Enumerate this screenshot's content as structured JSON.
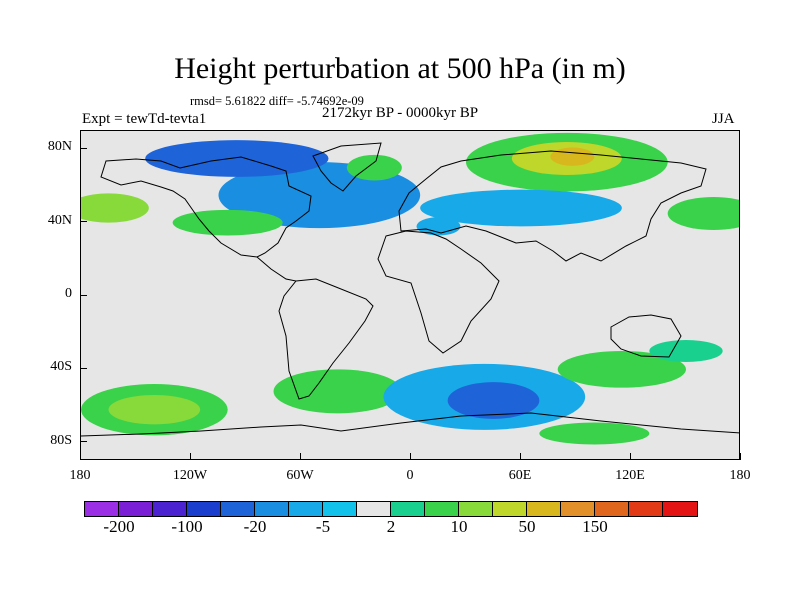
{
  "title": "Height perturbation at 500 hPa (in m)",
  "stats": "rmsd= 5.61822 diff= -5.74692e-09",
  "left_label": "Expt = tewTd-tevta1",
  "center_label": "2172kyr BP - 0000kyr BP",
  "right_label": "JJA",
  "map": {
    "lon_range": [
      -180,
      180
    ],
    "lat_range": [
      -90,
      90
    ],
    "x_ticks": [
      {
        "lon": -180,
        "label": "180"
      },
      {
        "lon": -120,
        "label": "120W"
      },
      {
        "lon": -60,
        "label": "60W"
      },
      {
        "lon": 0,
        "label": "0"
      },
      {
        "lon": 60,
        "label": "60E"
      },
      {
        "lon": 120,
        "label": "120E"
      },
      {
        "lon": 180,
        "label": "180"
      }
    ],
    "y_ticks": [
      {
        "lat": 80,
        "label": "80N"
      },
      {
        "lat": 40,
        "label": "40N"
      },
      {
        "lat": 0,
        "label": "0"
      },
      {
        "lat": -40,
        "label": "40S"
      },
      {
        "lat": -80,
        "label": "80S"
      }
    ]
  },
  "colorbar": {
    "colors": [
      "#9a2fe6",
      "#7a1fd6",
      "#4b23d0",
      "#1b3ecf",
      "#1e63d8",
      "#1a8ee0",
      "#18a9e8",
      "#12c2ea",
      "#e6e6e6",
      "#19d08f",
      "#3ad24a",
      "#88d93a",
      "#bfd62a",
      "#d8b71e",
      "#e2912a",
      "#e0661e",
      "#e23a16",
      "#e51414"
    ],
    "labels": [
      {
        "boundary": 1,
        "text": "-200"
      },
      {
        "boundary": 3,
        "text": "-100"
      },
      {
        "boundary": 5,
        "text": "-20"
      },
      {
        "boundary": 7,
        "text": "-5"
      },
      {
        "boundary": 9,
        "text": "2"
      },
      {
        "boundary": 11,
        "text": "10"
      },
      {
        "boundary": 13,
        "text": "50"
      },
      {
        "boundary": 15,
        "text": "150"
      }
    ]
  },
  "anomaly_regions": [
    {
      "name": "north-atlantic-low",
      "lon": -50,
      "lat": 55,
      "rx": 55,
      "ry": 18,
      "color": "#1a8ee0"
    },
    {
      "name": "arctic-canada-low",
      "lon": -95,
      "lat": 75,
      "rx": 50,
      "ry": 10,
      "color": "#1e63d8"
    },
    {
      "name": "greenland-high",
      "lon": -20,
      "lat": 70,
      "rx": 15,
      "ry": 7,
      "color": "#3ad24a"
    },
    {
      "name": "siberia-high-outer",
      "lon": 85,
      "lat": 73,
      "rx": 55,
      "ry": 16,
      "color": "#3ad24a"
    },
    {
      "name": "siberia-high-core",
      "lon": 85,
      "lat": 75,
      "rx": 30,
      "ry": 9,
      "color": "#bfd62a"
    },
    {
      "name": "siberia-high-peak",
      "lon": 88,
      "lat": 76,
      "rx": 12,
      "ry": 5,
      "color": "#d8b71e"
    },
    {
      "name": "north-pacific-high",
      "lon": -165,
      "lat": 48,
      "rx": 22,
      "ry": 8,
      "color": "#88d93a"
    },
    {
      "name": "nw-pacific-high",
      "lon": 165,
      "lat": 45,
      "rx": 25,
      "ry": 9,
      "color": "#3ad24a"
    },
    {
      "name": "asia-low",
      "lon": 60,
      "lat": 48,
      "rx": 55,
      "ry": 10,
      "color": "#18a9e8"
    },
    {
      "name": "north-america-high",
      "lon": -100,
      "lat": 40,
      "rx": 30,
      "ry": 7,
      "color": "#3ad24a"
    },
    {
      "name": "mediterranean-low",
      "lon": 15,
      "lat": 38,
      "rx": 12,
      "ry": 5,
      "color": "#18a9e8"
    },
    {
      "name": "south-pacific-high",
      "lon": -140,
      "lat": -62,
      "rx": 40,
      "ry": 14,
      "color": "#3ad24a"
    },
    {
      "name": "south-pacific-high-core",
      "lon": -140,
      "lat": -62,
      "rx": 25,
      "ry": 8,
      "color": "#88d93a"
    },
    {
      "name": "south-atlantic-high",
      "lon": -40,
      "lat": -52,
      "rx": 35,
      "ry": 12,
      "color": "#3ad24a"
    },
    {
      "name": "southern-ocean-low",
      "lon": 40,
      "lat": -55,
      "rx": 55,
      "ry": 18,
      "color": "#18a9e8"
    },
    {
      "name": "southern-ocean-low-core",
      "lon": 45,
      "lat": -57,
      "rx": 25,
      "ry": 10,
      "color": "#1e63d8"
    },
    {
      "name": "indian-ocean-high",
      "lon": 115,
      "lat": -40,
      "rx": 35,
      "ry": 10,
      "color": "#3ad24a"
    },
    {
      "name": "australia-high",
      "lon": 150,
      "lat": -30,
      "rx": 20,
      "ry": 6,
      "color": "#19d08f"
    },
    {
      "name": "antarctic-high",
      "lon": 100,
      "lat": -75,
      "rx": 30,
      "ry": 6,
      "color": "#3ad24a"
    }
  ]
}
